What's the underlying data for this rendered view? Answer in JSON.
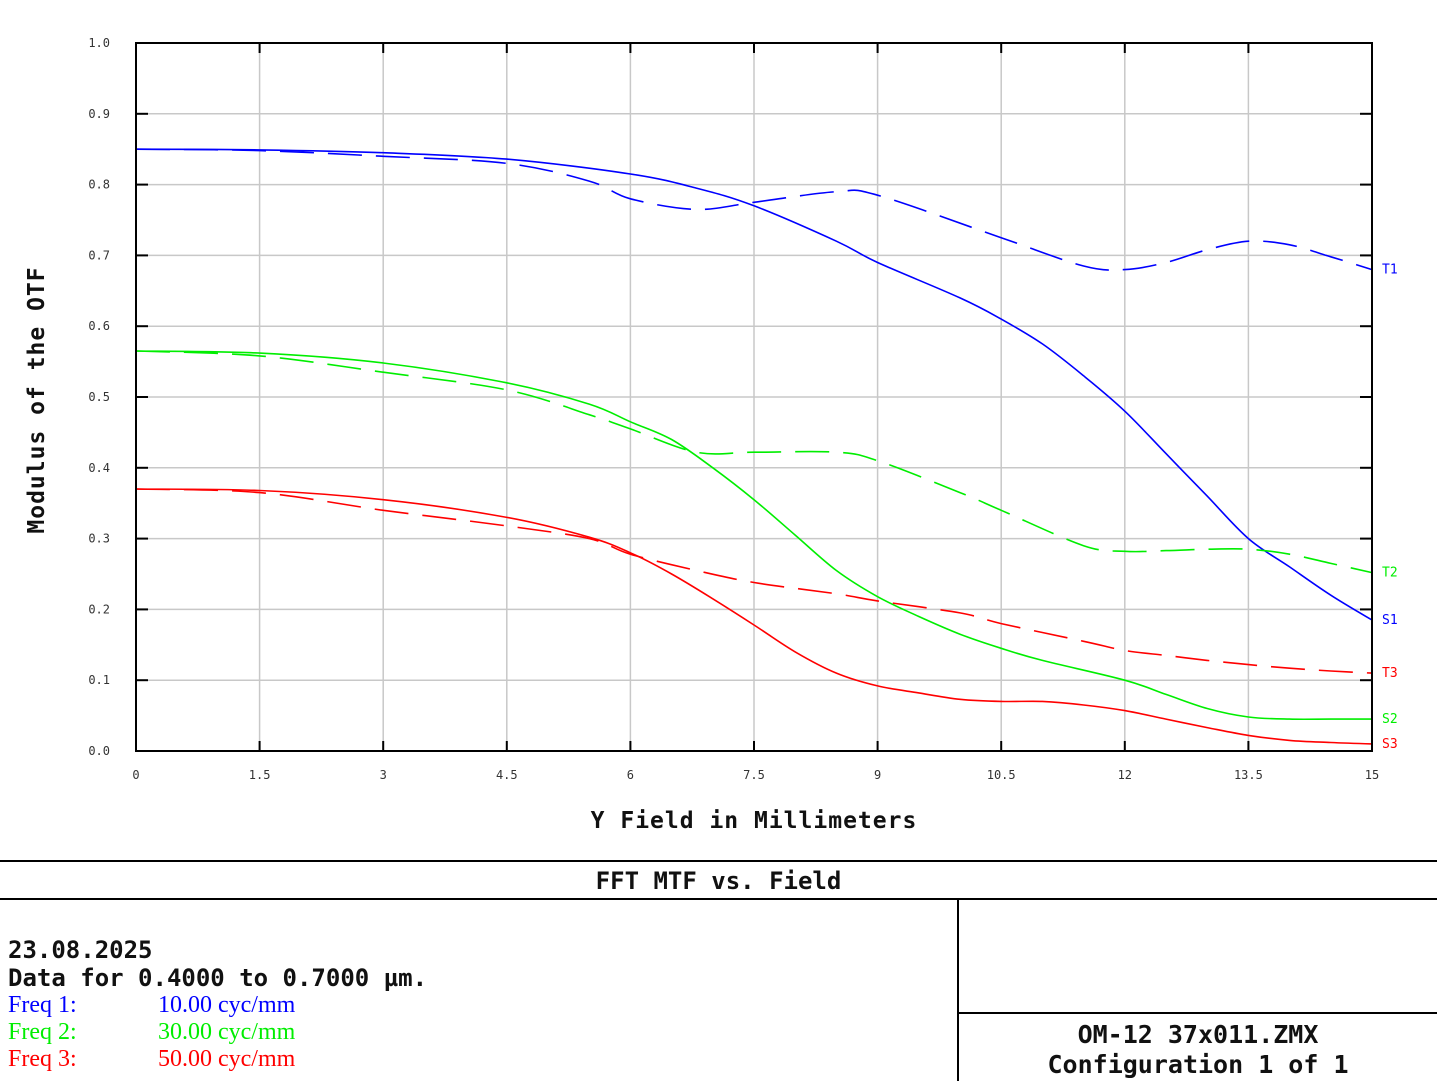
{
  "chart_data": {
    "type": "line",
    "xlabel": "Y Field in Millimeters",
    "ylabel": "Modulus of the OTF",
    "xlim": [
      0,
      15
    ],
    "ylim": [
      0,
      1
    ],
    "x_ticks": [
      "0",
      "1.5",
      "3",
      "4.5",
      "6",
      "7.5",
      "9",
      "10.5",
      "12",
      "13.5",
      "15"
    ],
    "y_ticks": [
      "0.0",
      "0.1",
      "0.2",
      "0.3",
      "0.4",
      "0.5",
      "0.6",
      "0.7",
      "0.8",
      "0.9",
      "1.0"
    ],
    "grid": true,
    "series": [
      {
        "name": "T1",
        "color": "#0000ff",
        "dashed": true,
        "x": [
          0,
          1.5,
          3,
          4.5,
          5.5,
          6,
          6.8,
          7.5,
          8.5,
          9,
          10.5,
          11.5,
          12,
          12.5,
          13,
          13.5,
          14,
          14.5,
          15
        ],
        "y": [
          0.85,
          0.848,
          0.84,
          0.83,
          0.805,
          0.78,
          0.765,
          0.775,
          0.79,
          0.785,
          0.725,
          0.685,
          0.68,
          0.69,
          0.708,
          0.72,
          0.715,
          0.698,
          0.68
        ]
      },
      {
        "name": "S1",
        "color": "#0000ff",
        "dashed": false,
        "x": [
          0,
          1.5,
          3,
          4.5,
          6,
          6.8,
          7.5,
          8.5,
          9,
          10,
          10.5,
          11,
          11.5,
          12,
          12.5,
          13,
          13.5,
          14,
          14.5,
          15
        ],
        "y": [
          0.85,
          0.849,
          0.845,
          0.836,
          0.815,
          0.795,
          0.77,
          0.72,
          0.69,
          0.64,
          0.61,
          0.575,
          0.53,
          0.48,
          0.42,
          0.36,
          0.3,
          0.26,
          0.22,
          0.185
        ]
      },
      {
        "name": "T2",
        "color": "#00ee00",
        "dashed": true,
        "x": [
          0,
          1.5,
          3,
          4.5,
          5.5,
          6,
          6.8,
          7.5,
          8.5,
          9,
          10,
          10.5,
          11.5,
          12,
          12.5,
          13,
          13.5,
          14,
          14.5,
          15
        ],
        "y": [
          0.565,
          0.558,
          0.535,
          0.51,
          0.475,
          0.455,
          0.422,
          0.422,
          0.422,
          0.41,
          0.365,
          0.34,
          0.29,
          0.282,
          0.283,
          0.285,
          0.285,
          0.278,
          0.265,
          0.252
        ]
      },
      {
        "name": "S2",
        "color": "#00ee00",
        "dashed": false,
        "x": [
          0,
          1.5,
          3,
          4.5,
          5.5,
          6,
          6.5,
          7,
          7.5,
          8,
          8.5,
          9,
          9.5,
          10,
          10.5,
          11,
          12,
          12.5,
          13,
          13.5,
          14,
          14.5,
          15
        ],
        "y": [
          0.565,
          0.562,
          0.548,
          0.52,
          0.49,
          0.465,
          0.44,
          0.4,
          0.355,
          0.305,
          0.255,
          0.218,
          0.19,
          0.165,
          0.145,
          0.128,
          0.1,
          0.08,
          0.06,
          0.048,
          0.045,
          0.045,
          0.045
        ]
      },
      {
        "name": "T3",
        "color": "#ff0000",
        "dashed": true,
        "x": [
          0,
          1.5,
          3,
          4.5,
          5.5,
          6,
          6.8,
          7.5,
          8.5,
          9,
          10,
          10.5,
          11.5,
          12,
          12.5,
          13,
          13.5,
          14,
          14.5,
          15
        ],
        "y": [
          0.37,
          0.365,
          0.34,
          0.318,
          0.3,
          0.278,
          0.255,
          0.238,
          0.222,
          0.212,
          0.195,
          0.18,
          0.155,
          0.142,
          0.135,
          0.128,
          0.122,
          0.117,
          0.113,
          0.11
        ]
      },
      {
        "name": "S3",
        "color": "#ff0000",
        "dashed": false,
        "x": [
          0,
          1.5,
          3,
          4.5,
          5.5,
          6,
          6.5,
          7,
          7.5,
          8,
          8.5,
          9,
          9.5,
          10,
          10.5,
          11,
          11.5,
          12,
          12.5,
          13,
          13.5,
          14,
          14.5,
          15
        ],
        "y": [
          0.37,
          0.368,
          0.355,
          0.33,
          0.302,
          0.28,
          0.25,
          0.215,
          0.178,
          0.14,
          0.11,
          0.092,
          0.082,
          0.073,
          0.07,
          0.07,
          0.065,
          0.057,
          0.045,
          0.033,
          0.022,
          0.015,
          0.012,
          0.01
        ]
      }
    ]
  },
  "report": {
    "title": "FFT MTF vs. Field",
    "date": "23.08.2025",
    "data_range": "Data for 0.4000 to 0.7000 µm.",
    "freqs": [
      {
        "label": "Freq 1:",
        "value": "10.00 cyc/mm",
        "color": "#0000ff"
      },
      {
        "label": "Freq 2:",
        "value": "30.00 cyc/mm",
        "color": "#00ee00"
      },
      {
        "label": "Freq 3:",
        "value": "50.00 cyc/mm",
        "color": "#ff0000"
      }
    ],
    "file": "OM-12 37x011.ZMX",
    "configuration": "Configuration 1 of 1"
  }
}
